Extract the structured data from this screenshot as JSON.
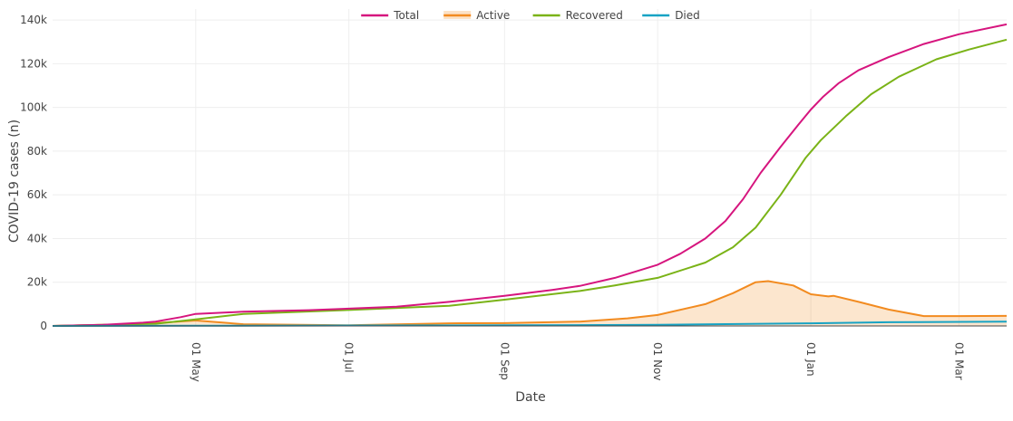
{
  "chart_data": {
    "type": "line",
    "xlabel": "Date",
    "ylabel": "COVID-19 cases (n)",
    "x_range": [
      "2020-03-05",
      "2021-03-20"
    ],
    "ylim": [
      0,
      145000
    ],
    "grid": true,
    "legend_placement": "top-center",
    "x_ticks": [
      {
        "date": "2020-05-01",
        "label": "01 May"
      },
      {
        "date": "2020-07-01",
        "label": "01 Jul"
      },
      {
        "date": "2020-09-01",
        "label": "01 Sep"
      },
      {
        "date": "2020-11-01",
        "label": "01 Nov"
      },
      {
        "date": "2021-01-01",
        "label": "01 Jan"
      },
      {
        "date": "2021-03-01",
        "label": "01 Mar"
      }
    ],
    "y_ticks": [
      {
        "value": 0,
        "label": "0"
      },
      {
        "value": 20000,
        "label": "20k"
      },
      {
        "value": 40000,
        "label": "40k"
      },
      {
        "value": 60000,
        "label": "60k"
      },
      {
        "value": 80000,
        "label": "80k"
      },
      {
        "value": 100000,
        "label": "100k"
      },
      {
        "value": 120000,
        "label": "120k"
      },
      {
        "value": 140000,
        "label": "140k"
      }
    ],
    "series": [
      {
        "name": "Total",
        "color": "#d6157e",
        "fill": false,
        "points": [
          [
            "2020-03-05",
            0
          ],
          [
            "2020-03-25",
            500
          ],
          [
            "2020-04-10",
            1500
          ],
          [
            "2020-04-15",
            2000
          ],
          [
            "2020-04-25",
            4000
          ],
          [
            "2020-05-01",
            5500
          ],
          [
            "2020-05-20",
            6500
          ],
          [
            "2020-06-15",
            7200
          ],
          [
            "2020-07-01",
            7900
          ],
          [
            "2020-07-20",
            8800
          ],
          [
            "2020-08-10",
            11000
          ],
          [
            "2020-09-01",
            13800
          ],
          [
            "2020-09-20",
            16500
          ],
          [
            "2020-10-01",
            18300
          ],
          [
            "2020-10-15",
            22000
          ],
          [
            "2020-11-01",
            28000
          ],
          [
            "2020-11-10",
            33000
          ],
          [
            "2020-11-20",
            40000
          ],
          [
            "2020-11-28",
            48000
          ],
          [
            "2020-12-05",
            58000
          ],
          [
            "2020-12-12",
            70000
          ],
          [
            "2020-12-20",
            82000
          ],
          [
            "2020-12-27",
            92000
          ],
          [
            "2021-01-01",
            99000
          ],
          [
            "2021-01-06",
            105000
          ],
          [
            "2021-01-12",
            111000
          ],
          [
            "2021-01-20",
            117000
          ],
          [
            "2021-02-01",
            123000
          ],
          [
            "2021-02-15",
            129000
          ],
          [
            "2021-03-01",
            133500
          ],
          [
            "2021-03-20",
            138000
          ]
        ]
      },
      {
        "name": "Active",
        "color": "#f28b20",
        "fill": true,
        "points": [
          [
            "2020-03-05",
            0
          ],
          [
            "2020-04-10",
            1000
          ],
          [
            "2020-05-01",
            2500
          ],
          [
            "2020-05-20",
            800
          ],
          [
            "2020-07-01",
            300
          ],
          [
            "2020-08-10",
            1200
          ],
          [
            "2020-09-01",
            1300
          ],
          [
            "2020-10-01",
            2000
          ],
          [
            "2020-10-20",
            3500
          ],
          [
            "2020-11-01",
            5000
          ],
          [
            "2020-11-20",
            10000
          ],
          [
            "2020-12-01",
            15000
          ],
          [
            "2020-12-10",
            20000
          ],
          [
            "2020-12-15",
            20500
          ],
          [
            "2020-12-25",
            18500
          ],
          [
            "2021-01-01",
            14500
          ],
          [
            "2021-01-08",
            13500
          ],
          [
            "2021-01-10",
            13800
          ],
          [
            "2021-01-20",
            11000
          ],
          [
            "2021-02-01",
            7500
          ],
          [
            "2021-02-15",
            4500
          ],
          [
            "2021-03-01",
            4500
          ],
          [
            "2021-03-20",
            4600
          ]
        ]
      },
      {
        "name": "Recovered",
        "color": "#7ab317",
        "fill": false,
        "points": [
          [
            "2020-03-05",
            0
          ],
          [
            "2020-04-15",
            1000
          ],
          [
            "2020-05-01",
            3000
          ],
          [
            "2020-05-20",
            5500
          ],
          [
            "2020-07-01",
            7300
          ],
          [
            "2020-08-10",
            9200
          ],
          [
            "2020-09-01",
            12000
          ],
          [
            "2020-10-01",
            16000
          ],
          [
            "2020-10-15",
            18500
          ],
          [
            "2020-11-01",
            22000
          ],
          [
            "2020-11-20",
            29000
          ],
          [
            "2020-12-01",
            36000
          ],
          [
            "2020-12-10",
            45000
          ],
          [
            "2020-12-20",
            60000
          ],
          [
            "2020-12-30",
            77000
          ],
          [
            "2021-01-05",
            85000
          ],
          [
            "2021-01-15",
            96000
          ],
          [
            "2021-01-25",
            106000
          ],
          [
            "2021-02-05",
            114000
          ],
          [
            "2021-02-20",
            122000
          ],
          [
            "2021-03-05",
            126500
          ],
          [
            "2021-03-20",
            131000
          ]
        ]
      },
      {
        "name": "Died",
        "color": "#17a3c4",
        "fill": false,
        "points": [
          [
            "2020-03-05",
            0
          ],
          [
            "2020-05-01",
            100
          ],
          [
            "2020-09-01",
            300
          ],
          [
            "2020-11-01",
            500
          ],
          [
            "2021-01-01",
            1200
          ],
          [
            "2021-02-01",
            1700
          ],
          [
            "2021-03-20",
            2000
          ]
        ]
      }
    ]
  }
}
